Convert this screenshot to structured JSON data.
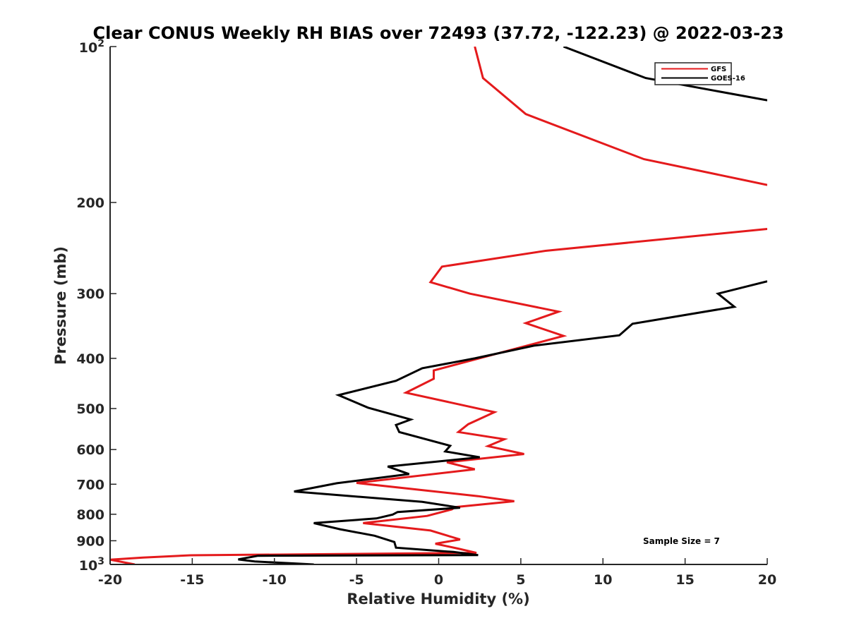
{
  "chart_data": {
    "type": "line",
    "title": "Clear CONUS Weekly RH BIAS over 72493 (37.72, -122.23) @ 2022-03-23",
    "xlabel": "Relative Humidity (%)",
    "ylabel": "Pressure (mb)",
    "xlim": [
      -20,
      20
    ],
    "ylim": [
      100,
      1000
    ],
    "y_scale": "log",
    "y_direction": "reversed",
    "grid": false,
    "legend_position": "top-right",
    "x_ticks": [
      -20,
      -15,
      -10,
      -5,
      0,
      5,
      10,
      15,
      20
    ],
    "x_tick_labels": [
      "-20",
      "-15",
      "-10",
      "-5",
      "0",
      "5",
      "10",
      "15",
      "20"
    ],
    "y_ticks": [
      100,
      200,
      300,
      400,
      500,
      600,
      700,
      800,
      900,
      1000
    ],
    "y_tick_labels": [
      "",
      "200",
      "300",
      "400",
      "500",
      "600",
      "700",
      "800",
      "900",
      ""
    ],
    "y_power_labels": [
      {
        "value": 100,
        "base": "10",
        "exp": "2"
      },
      {
        "value": 1000,
        "base": "10",
        "exp": "3"
      }
    ],
    "annotation": "Sample Size = 7",
    "series": [
      {
        "name": "GFS",
        "color": "#e41a1c",
        "points": [
          [
            2.2,
            100
          ],
          [
            2.7,
            115
          ],
          [
            5.3,
            135
          ],
          [
            12.5,
            165
          ],
          [
            20,
            185
          ],
          [
            null,
            200
          ],
          [
            20,
            225
          ],
          [
            6.5,
            248
          ],
          [
            0.2,
            266
          ],
          [
            -0.5,
            285
          ],
          [
            1.9,
            300
          ],
          [
            7.3,
            325
          ],
          [
            5.3,
            342
          ],
          [
            7.6,
            362
          ],
          [
            4.7,
            383
          ],
          [
            -0.3,
            422
          ],
          [
            -0.3,
            438
          ],
          [
            -2,
            466
          ],
          [
            3.4,
            508
          ],
          [
            1.8,
            536
          ],
          [
            1.2,
            555
          ],
          [
            4,
            573
          ],
          [
            3,
            591
          ],
          [
            5.2,
            612
          ],
          [
            0.5,
            635
          ],
          [
            2.2,
            655
          ],
          [
            -5,
            696
          ],
          [
            2.4,
            738
          ],
          [
            4.6,
            755
          ],
          [
            1,
            775
          ],
          [
            0.8,
            783
          ],
          [
            -0.7,
            806
          ],
          [
            -4.6,
            832
          ],
          [
            -0.5,
            860
          ],
          [
            1.3,
            895
          ],
          [
            -0.2,
            912
          ],
          [
            1.2,
            932
          ],
          [
            2.3,
            950
          ],
          [
            -15.1,
            960
          ],
          [
            -18,
            970
          ],
          [
            -20,
            979
          ],
          [
            -18.5,
            1000
          ]
        ]
      },
      {
        "name": "GOES-16",
        "color": "#000000",
        "points": [
          [
            7.6,
            100
          ],
          [
            12.6,
            115
          ],
          [
            20,
            127
          ],
          [
            null,
            200
          ],
          [
            20,
            284
          ],
          [
            17,
            300
          ],
          [
            18,
            318
          ],
          [
            11.8,
            343
          ],
          [
            11,
            361
          ],
          [
            5.8,
            378
          ],
          [
            2.2,
            400
          ],
          [
            -1,
            418
          ],
          [
            -2.6,
            442
          ],
          [
            -6.1,
            471
          ],
          [
            -4.3,
            498
          ],
          [
            -1.7,
            525
          ],
          [
            -2.6,
            538
          ],
          [
            -2.4,
            555
          ],
          [
            0.7,
            590
          ],
          [
            0.4,
            605
          ],
          [
            2.5,
            621
          ],
          [
            -3.1,
            647
          ],
          [
            -1.8,
            669
          ],
          [
            -6.2,
            697
          ],
          [
            -8.8,
            723
          ],
          [
            -1,
            757
          ],
          [
            1.3,
            777
          ],
          [
            -2.5,
            792
          ],
          [
            -2.8,
            801
          ],
          [
            -3.8,
            815
          ],
          [
            -7.6,
            832
          ],
          [
            -6,
            855
          ],
          [
            -3.9,
            880
          ],
          [
            -2.7,
            905
          ],
          [
            -2.6,
            928
          ],
          [
            0.9,
            946
          ],
          [
            2.4,
            959
          ],
          [
            -11,
            962
          ],
          [
            -12.2,
            978
          ],
          [
            -11.2,
            987
          ],
          [
            -7.6,
            1000
          ]
        ]
      }
    ]
  }
}
